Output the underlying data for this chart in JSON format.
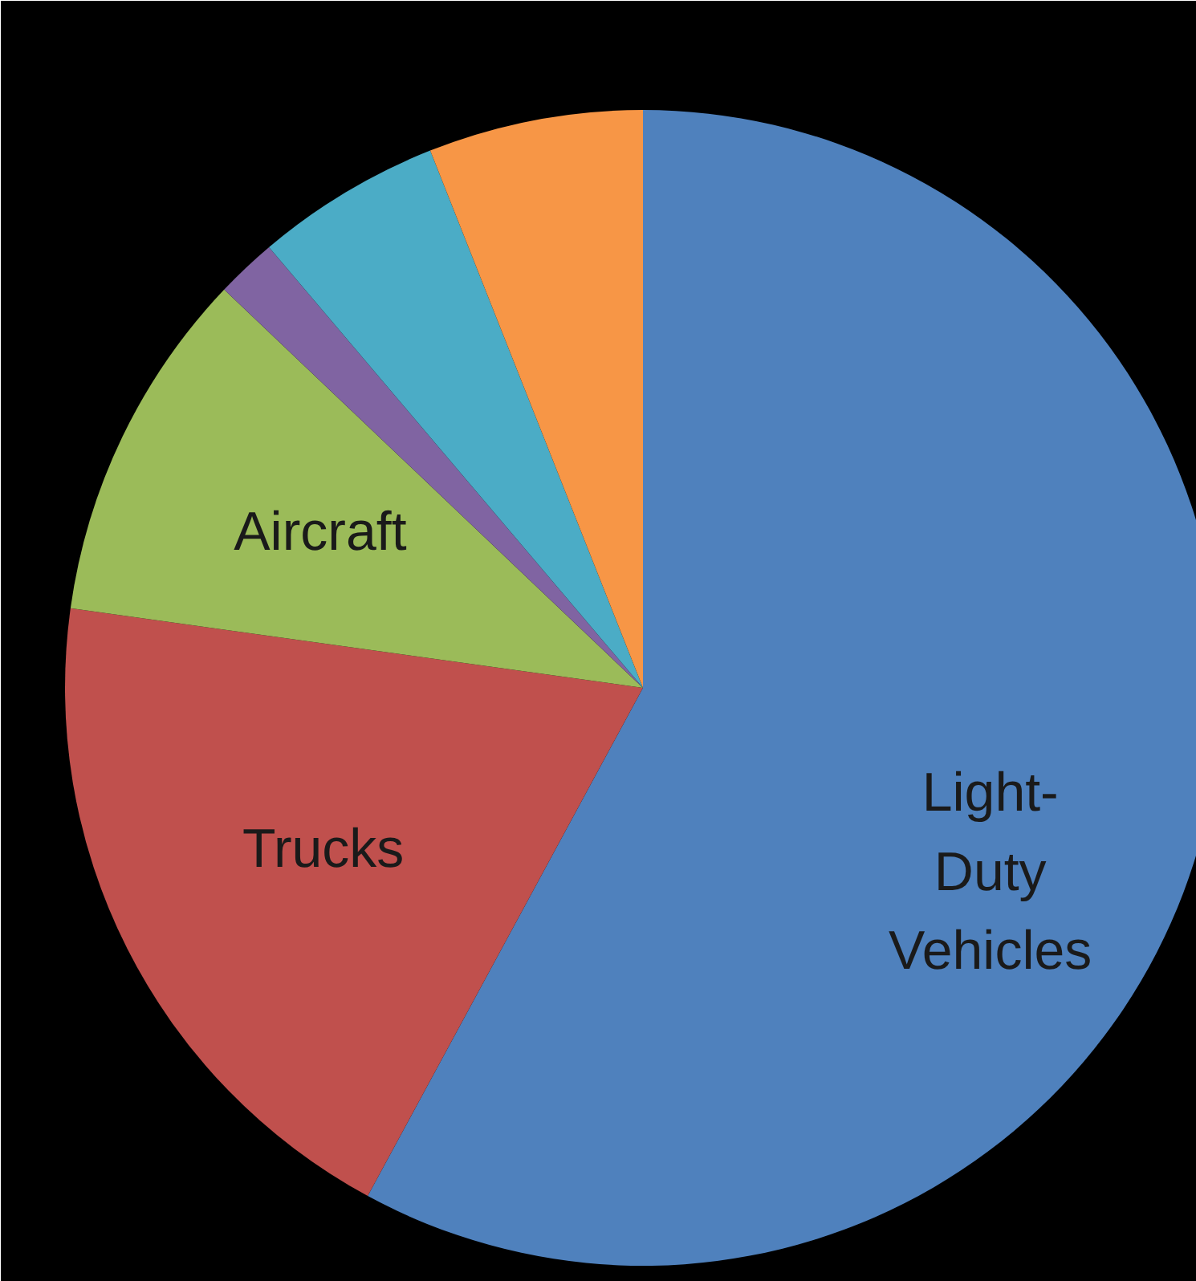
{
  "chart_data": {
    "type": "pie",
    "categories": [
      "Light-\nDuty\nVehicles",
      "Trucks",
      "Aircraft",
      null,
      null,
      null
    ],
    "values": [
      57.9,
      19.3,
      9.9,
      1.7,
      5.2,
      6.0
    ],
    "colors": [
      "#4f81bd",
      "#c0504d",
      "#9bbb59",
      "#8064a2",
      "#4bacc6",
      "#f79646"
    ]
  }
}
